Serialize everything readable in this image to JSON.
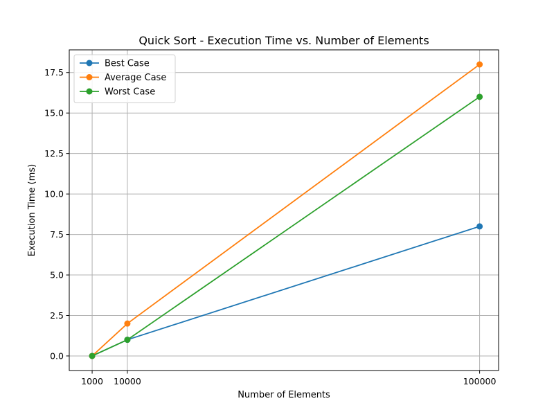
{
  "chart_data": {
    "type": "line",
    "title": "Quick Sort - Execution Time vs. Number of Elements",
    "xlabel": "Number of Elements",
    "ylabel": "Execution Time (ms)",
    "x": [
      1000,
      10000,
      100000
    ],
    "x_tick_labels": [
      "1000",
      "10000",
      "100000"
    ],
    "y_ticks": [
      0.0,
      2.5,
      5.0,
      7.5,
      10.0,
      12.5,
      15.0,
      17.5
    ],
    "y_tick_labels": [
      "0.0",
      "2.5",
      "5.0",
      "7.5",
      "10.0",
      "12.5",
      "15.0",
      "17.5"
    ],
    "xlim": [
      -4850,
      104850
    ],
    "ylim": [
      -0.9,
      18.9
    ],
    "grid": true,
    "legend_position": "top-left",
    "marker": "circle",
    "series": [
      {
        "name": "Best Case",
        "color": "#1f77b4",
        "values": [
          0,
          1,
          8
        ]
      },
      {
        "name": "Average Case",
        "color": "#ff7f0e",
        "values": [
          0,
          2,
          18
        ]
      },
      {
        "name": "Worst Case",
        "color": "#2ca02c",
        "values": [
          0,
          1,
          16
        ]
      }
    ]
  }
}
